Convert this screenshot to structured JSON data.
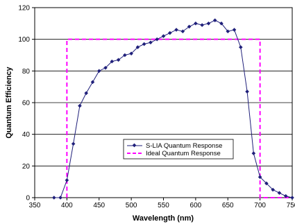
{
  "chart_data": {
    "type": "line",
    "title": "",
    "xlabel": "Wavelength (nm)",
    "ylabel": "Quantum Efficiency",
    "xlim": [
      350,
      750
    ],
    "ylim": [
      0,
      120
    ],
    "x_ticks": [
      350,
      400,
      450,
      500,
      550,
      600,
      650,
      700,
      750
    ],
    "y_ticks": [
      0,
      20,
      40,
      60,
      80,
      100,
      120
    ],
    "grid": "horizontal",
    "legend_position": "lower-center",
    "series": [
      {
        "name": "S-LIA Quantum Response",
        "color": "#1f1f7a",
        "style": "solid-with-diamond-markers",
        "points": [
          [
            380,
            0
          ],
          [
            390,
            0
          ],
          [
            400,
            11
          ],
          [
            410,
            34
          ],
          [
            420,
            58
          ],
          [
            430,
            66
          ],
          [
            440,
            73
          ],
          [
            450,
            80
          ],
          [
            460,
            82
          ],
          [
            470,
            86
          ],
          [
            480,
            87
          ],
          [
            490,
            90
          ],
          [
            500,
            91
          ],
          [
            510,
            95
          ],
          [
            520,
            97
          ],
          [
            530,
            98
          ],
          [
            540,
            100
          ],
          [
            550,
            102
          ],
          [
            560,
            104
          ],
          [
            570,
            106
          ],
          [
            580,
            105
          ],
          [
            590,
            108
          ],
          [
            600,
            110
          ],
          [
            610,
            109
          ],
          [
            620,
            110
          ],
          [
            630,
            112
          ],
          [
            640,
            110
          ],
          [
            650,
            105
          ],
          [
            660,
            106
          ],
          [
            670,
            95
          ],
          [
            680,
            67
          ],
          [
            690,
            28
          ],
          [
            700,
            13
          ],
          [
            710,
            9
          ],
          [
            720,
            5
          ],
          [
            730,
            3
          ],
          [
            740,
            1
          ],
          [
            750,
            0
          ]
        ]
      },
      {
        "name": "Ideal Quantum Response",
        "color": "#ff00ff",
        "style": "dashed",
        "points": [
          [
            400,
            0
          ],
          [
            400,
            100
          ],
          [
            700,
            100
          ],
          [
            700,
            0
          ],
          [
            750,
            0
          ]
        ]
      }
    ]
  }
}
